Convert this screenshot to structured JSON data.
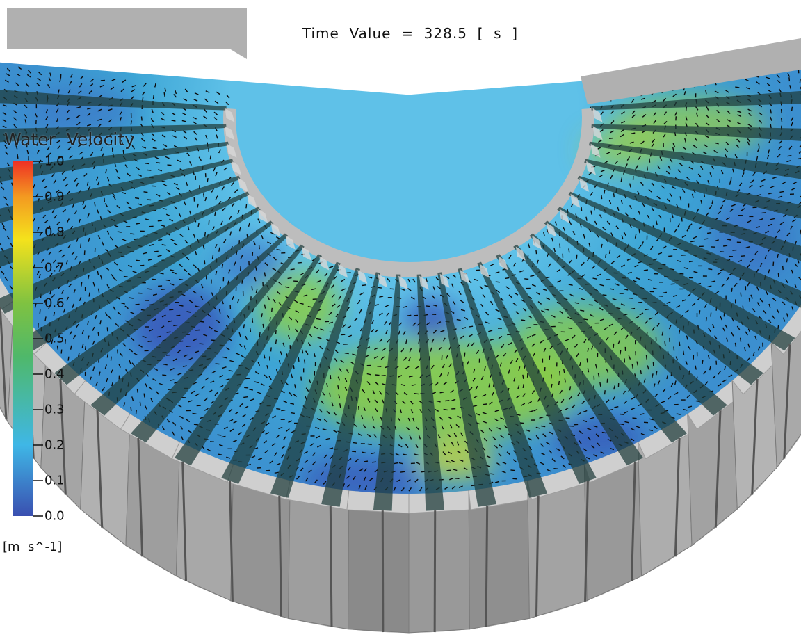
{
  "time_label": "Time  Value  =  328.5  [  s  ]",
  "legend": {
    "title": "Water  Velocity",
    "unit": "[m  s^-1]",
    "ticks": [
      "1.0",
      "0.9",
      "0.8",
      "0.7",
      "0.6",
      "0.5",
      "0.4",
      "0.3",
      "0.2",
      "0.1",
      "0.0"
    ],
    "range": [
      0.0,
      1.0
    ],
    "colormap": [
      "#3a4fb0",
      "#3fb7e6",
      "#57b849",
      "#f4e21c",
      "#ee3124"
    ]
  },
  "colors": {
    "wall_light": "#c9c9c9",
    "wall_mid": "#9a9a9a",
    "wall_dark": "#6e6e6e",
    "baffle": "#2b4a48",
    "arrow": "#0b0b0b",
    "background": "#ffffff"
  }
}
